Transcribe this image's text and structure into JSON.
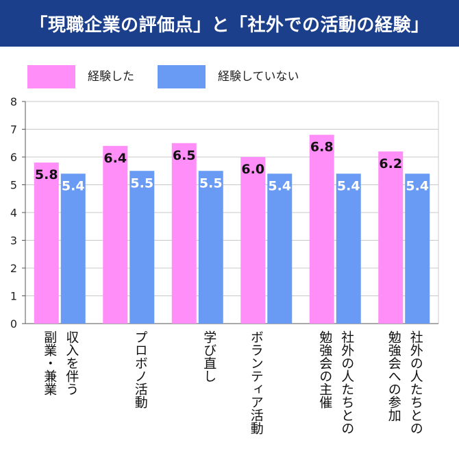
{
  "title": "「現職企業の評価点」と「社外での活動の経験」",
  "legend": {
    "experienced": "経験した",
    "not_experienced": "経験していない"
  },
  "colors": {
    "header_bg": "#1c3f8c",
    "experienced": "#ff8ef8",
    "not_experienced": "#6a9bf4"
  },
  "chart_data": {
    "type": "bar",
    "title": "「現職企業の評価点」と「社外での活動の経験」",
    "xlabel": "",
    "ylabel": "",
    "ylim": [
      0,
      8
    ],
    "yticks": [
      "0",
      "1",
      "2",
      "3",
      "4",
      "5",
      "6",
      "7",
      "8"
    ],
    "grid": true,
    "legend_position": "top-left",
    "categories": [
      {
        "col1": "収入を伴う",
        "col2": "副業・兼業"
      },
      {
        "col1": "プロボノ活動",
        "col2": ""
      },
      {
        "col1": "学び直し",
        "col2": ""
      },
      {
        "col1": "",
        "col2": "ボランティア活動"
      },
      {
        "col1": "社外の人たちとの",
        "col2": "勉強会の主催"
      },
      {
        "col1": "社外の人たちとの",
        "col2": "勉強会への参加"
      }
    ],
    "series": [
      {
        "name": "経験した",
        "values": [
          5.8,
          6.4,
          6.5,
          6.0,
          6.8,
          6.2
        ],
        "labels": [
          "5.8",
          "6.4",
          "6.5",
          "6.0",
          "6.8",
          "6.2"
        ]
      },
      {
        "name": "経験していない",
        "values": [
          5.4,
          5.5,
          5.5,
          5.4,
          5.4,
          5.4
        ],
        "labels": [
          "5.4",
          "5.5",
          "5.5",
          "5.4",
          "5.4",
          "5.4"
        ]
      }
    ]
  }
}
